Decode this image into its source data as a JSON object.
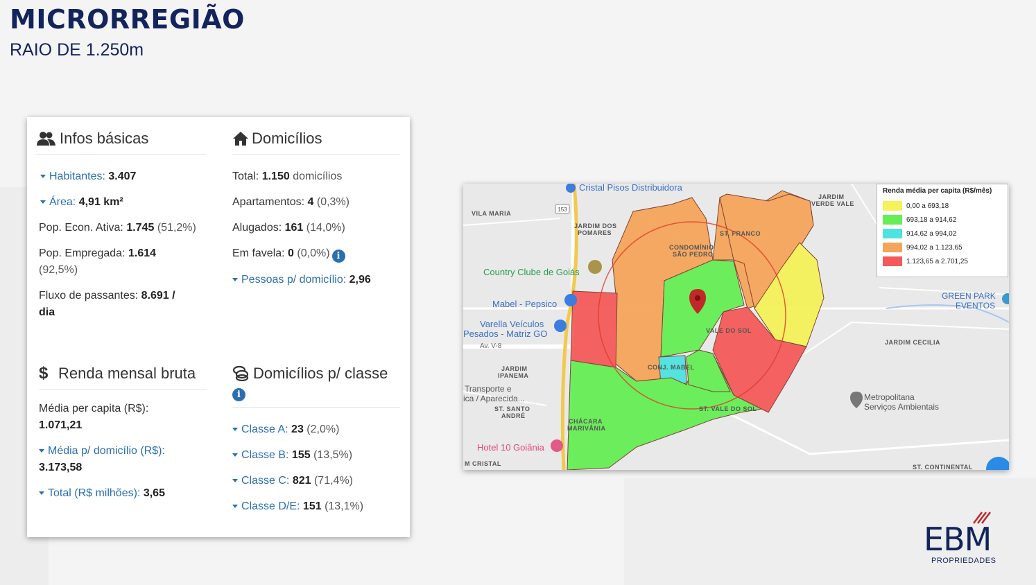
{
  "header": {
    "title": "MICRORREGIÃO",
    "subtitle": "RAIO DE 1.250m"
  },
  "card": {
    "infos": {
      "title": "Infos básicas",
      "habitantes": {
        "label": "Habitantes:",
        "value": "3.407"
      },
      "area": {
        "label": "Área:",
        "value": "4,91 km²"
      },
      "pea": {
        "label": "Pop. Econ. Ativa:",
        "value": "1.745",
        "extra": "(51,2%)"
      },
      "empregada": {
        "label": "Pop. Empregada:",
        "value": "1.614",
        "extra": "(92,5%)"
      },
      "fluxo": {
        "label": "Fluxo de passantes:",
        "value": "8.691 /",
        "value2": "dia"
      }
    },
    "domicilios": {
      "title": "Domicílios",
      "total": {
        "label": "Total:",
        "value": "1.150",
        "extra": "domicílios"
      },
      "apartamentos": {
        "label": "Apartamentos:",
        "value": "4",
        "extra": "(0,3%)"
      },
      "alugados": {
        "label": "Alugados:",
        "value": "161",
        "extra": "(14,0%)"
      },
      "favela": {
        "label": "Em favela:",
        "value": "0",
        "extra": "(0,0%)"
      },
      "pessoas": {
        "label": "Pessoas p/ domicílio:",
        "value": "2,96"
      }
    },
    "renda": {
      "title": "Renda mensal bruta",
      "media_capita": {
        "label": "Média per capita (R$):",
        "value": "1.071,21"
      },
      "media_domicilio": {
        "label": "Média p/ domicílio (R$):",
        "value": "3.173,58"
      },
      "total": {
        "label": "Total (R$ milhões):",
        "value": "3,65"
      }
    },
    "classes": {
      "title": "Domicílios p/ classe",
      "a": {
        "label": "Classe A:",
        "value": "23",
        "extra": "(2,0%)"
      },
      "b": {
        "label": "Classe B:",
        "value": "155",
        "extra": "(13,5%)"
      },
      "c": {
        "label": "Classe C:",
        "value": "821",
        "extra": "(71,4%)"
      },
      "de": {
        "label": "Classe D/E:",
        "value": "151",
        "extra": "(13,1%)"
      }
    },
    "info_glyph": "i",
    "currency_glyph": "$"
  },
  "map": {
    "legend": {
      "title": "Renda média per capita (R$/mês)",
      "items": [
        {
          "label": "0,00 a 693,18",
          "color": "#f5f25a"
        },
        {
          "label": "693,18 a 914,62",
          "color": "#66ee55"
        },
        {
          "label": "914,62 a 994,02",
          "color": "#4de3e0"
        },
        {
          "label": "994,02 a 1.123,65",
          "color": "#f5a55a"
        },
        {
          "label": "1.123,65 a 2.701,25",
          "color": "#f55a5a"
        }
      ]
    },
    "labels": {
      "cristal": "Cristal Pisos Distribuidora",
      "vila_maria": "VILA MARIA",
      "jardim_pomares_1": "JARDIM DOS",
      "jardim_pomares_2": "POMARES",
      "condominio_1": "CONDOMÍNIO",
      "condominio_2": "SÃO PEDRO",
      "st_franco": "ST. FRANCO",
      "jardim_verde_1": "JARDIM",
      "jardim_verde_2": "VERDE VALE",
      "country": "Country Clube de Goiás",
      "mabel": "Mabel - Pepsico",
      "varella_1": "Varella Veículos",
      "varella_2": "Pesados - Matriz GO",
      "av": "Av. V-8",
      "ipanema_1": "JARDIM",
      "ipanema_2": "IPANEMA",
      "transporte_1": "Transporte e",
      "transporte_2": "ica / Aparecida...",
      "santo_andre_1": "ST. SANTO",
      "santo_andre_2": "ANDRÉ",
      "chacara_1": "CHÁCARA",
      "chacara_2": "MARIVÂNIA",
      "hotel": "Hotel 10 Goiânia",
      "m_cristal": "M CRISTAL",
      "vale_sol": "VALE DO SOL",
      "conj_mabel": "CONJ. MABEL",
      "st_vale_sol": "ST. VALE DO SOL",
      "green_park_1": "GREEN PARK",
      "green_park_2": "EVENTOS",
      "jardim_cecilia": "JARDIM CECILIA",
      "metropolitana_1": "Metropolitana",
      "metropolitana_2": "Serviços Ambientais",
      "st_continental": "ST. CONTINENTAL",
      "road_153": "153"
    }
  },
  "logo": {
    "text": "EBM",
    "sub": "PROPRIEDADES"
  }
}
